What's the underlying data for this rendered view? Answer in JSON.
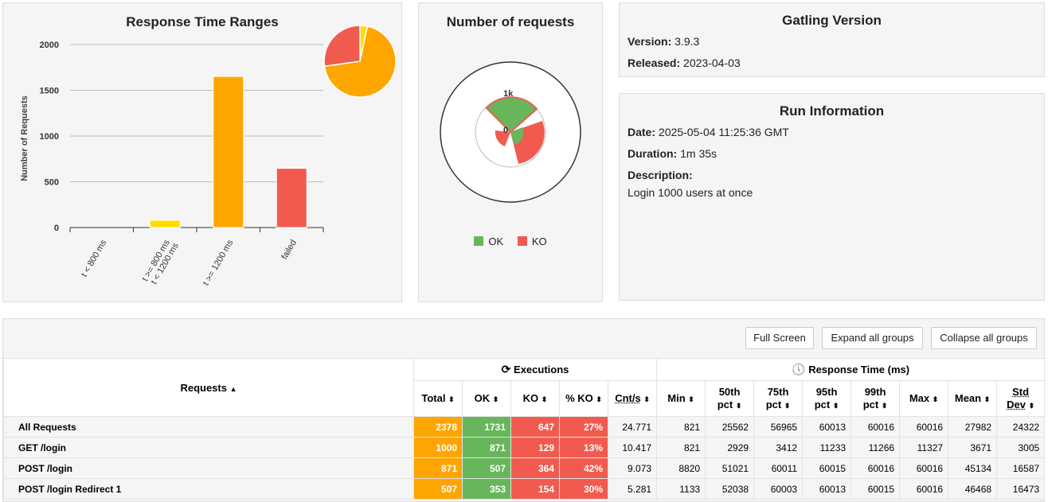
{
  "range_panel": {
    "title": "Response Time Ranges",
    "chart_data": {
      "type": "bar",
      "categories": [
        "t < 800 ms",
        "t >= 800 ms t < 1200 ms",
        "t >= 1200 ms",
        "failed"
      ],
      "category_lines": [
        [
          "t < 800 ms"
        ],
        [
          "t >= 800 ms",
          "t < 1200 ms"
        ],
        [
          "t >= 1200 ms"
        ],
        [
          "failed"
        ]
      ],
      "values": [
        0,
        80,
        1651,
        647
      ],
      "colors": [
        "#68b65c",
        "#ffdd00",
        "#ffa500",
        "#f15b4f"
      ],
      "ylabel": "Number of Requests",
      "ylim": [
        0,
        2000
      ],
      "yticks": [
        "0",
        "500",
        "1000",
        "1500",
        "2000"
      ],
      "grid": true,
      "pie": {
        "values": [
          80,
          1651,
          647
        ],
        "colors": [
          "#ffdd00",
          "#ffa500",
          "#f15b4f"
        ],
        "placement": "top-right"
      }
    }
  },
  "requests_panel": {
    "title": "Number of requests",
    "center_label": "0",
    "ring_label": "1k",
    "legend": [
      {
        "label": "OK",
        "color": "#68b65c"
      },
      {
        "label": "KO",
        "color": "#f15b4f"
      }
    ]
  },
  "version_panel": {
    "title": "Gatling Version",
    "version_label": "Version:",
    "version_value": "3.9.3",
    "released_label": "Released:",
    "released_value": "2023-04-03"
  },
  "run_panel": {
    "title": "Run Information",
    "date_label": "Date:",
    "date_value": "2025-05-04 11:25:36 GMT",
    "duration_label": "Duration:",
    "duration_value": "1m 35s",
    "description_label": "Description:",
    "description_value": "Login 1000 users at once"
  },
  "buttons": {
    "full_screen": "Full Screen",
    "expand": "Expand all groups",
    "collapse": "Collapse all groups"
  },
  "table": {
    "requests_header": "Requests",
    "executions_header": "Executions",
    "response_header": "Response Time (ms)",
    "columns": {
      "total": "Total",
      "ok": "OK",
      "ko": "KO",
      "pct_ko": "% KO",
      "cnt": "Cnt/s",
      "min": "Min",
      "p50a": "50th",
      "p50b": "pct",
      "p75a": "75th",
      "p75b": "pct",
      "p95a": "95th",
      "p95b": "pct",
      "p99a": "99th",
      "p99b": "pct",
      "max": "Max",
      "mean": "Mean",
      "stda": "Std",
      "stdb": "Dev"
    },
    "rows": [
      {
        "name": "All Requests",
        "total": "2378",
        "ok": "1731",
        "ko": "647",
        "pct_ko": "27%",
        "cnt": "24.771",
        "min": "821",
        "p50": "25562",
        "p75": "56965",
        "p95": "60013",
        "p99": "60016",
        "max": "60016",
        "mean": "27982",
        "std": "24322"
      },
      {
        "name": "GET /login",
        "total": "1000",
        "ok": "871",
        "ko": "129",
        "pct_ko": "13%",
        "cnt": "10.417",
        "min": "821",
        "p50": "2929",
        "p75": "3412",
        "p95": "11233",
        "p99": "11266",
        "max": "11327",
        "mean": "3671",
        "std": "3005"
      },
      {
        "name": "POST /login",
        "total": "871",
        "ok": "507",
        "ko": "364",
        "pct_ko": "42%",
        "cnt": "9.073",
        "min": "8820",
        "p50": "51021",
        "p75": "60011",
        "p95": "60015",
        "p99": "60016",
        "max": "60016",
        "mean": "45134",
        "std": "16587"
      },
      {
        "name": "POST /login Redirect 1",
        "total": "507",
        "ok": "353",
        "ko": "154",
        "pct_ko": "30%",
        "cnt": "5.281",
        "min": "1133",
        "p50": "52038",
        "p75": "60003",
        "p95": "60013",
        "p99": "60015",
        "max": "60016",
        "mean": "46468",
        "std": "16473"
      }
    ]
  }
}
